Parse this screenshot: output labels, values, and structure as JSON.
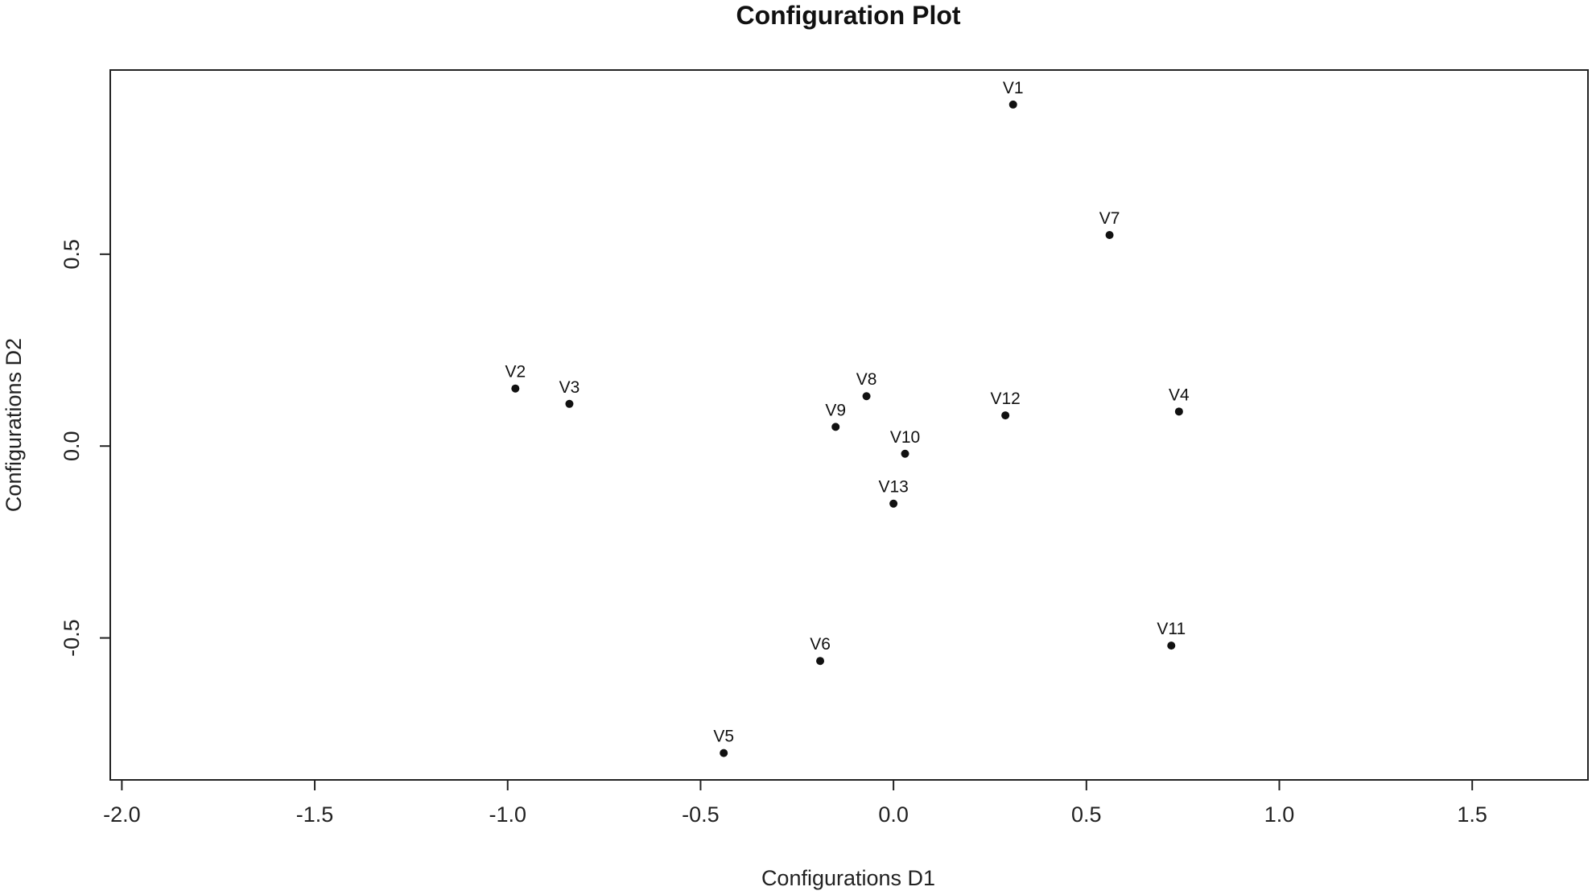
{
  "chart_data": {
    "type": "scatter",
    "title": "Configuration Plot",
    "xlabel": "Configurations D1",
    "ylabel": "Configurations D2",
    "xlim": [
      -2.03,
      1.8
    ],
    "ylim": [
      -0.87,
      0.98
    ],
    "xticks": [
      -2.0,
      -1.5,
      -1.0,
      -0.5,
      0.0,
      0.5,
      1.0,
      1.5
    ],
    "xtick_labels": [
      "-2.0",
      "-1.5",
      "-1.0",
      "-0.5",
      "0.0",
      "0.5",
      "1.0",
      "1.5"
    ],
    "yticks": [
      -0.5,
      0.0,
      0.5
    ],
    "ytick_labels": [
      "-0.5",
      "0.0",
      "0.5"
    ],
    "grid": false,
    "legend": "none",
    "point_color": "#111111",
    "points": [
      {
        "label": "V1",
        "x": 0.31,
        "y": 0.89
      },
      {
        "label": "V2",
        "x": -0.98,
        "y": 0.15
      },
      {
        "label": "V3",
        "x": -0.84,
        "y": 0.11
      },
      {
        "label": "V4",
        "x": 0.74,
        "y": 0.09
      },
      {
        "label": "V5",
        "x": -0.44,
        "y": -0.8
      },
      {
        "label": "V6",
        "x": -0.19,
        "y": -0.56
      },
      {
        "label": "V7",
        "x": 0.56,
        "y": 0.55
      },
      {
        "label": "V8",
        "x": -0.07,
        "y": 0.13
      },
      {
        "label": "V9",
        "x": -0.15,
        "y": 0.05
      },
      {
        "label": "V10",
        "x": 0.03,
        "y": -0.02
      },
      {
        "label": "V11",
        "x": 0.72,
        "y": -0.52
      },
      {
        "label": "V12",
        "x": 0.29,
        "y": 0.08
      },
      {
        "label": "V13",
        "x": 0.0,
        "y": -0.15
      }
    ]
  }
}
